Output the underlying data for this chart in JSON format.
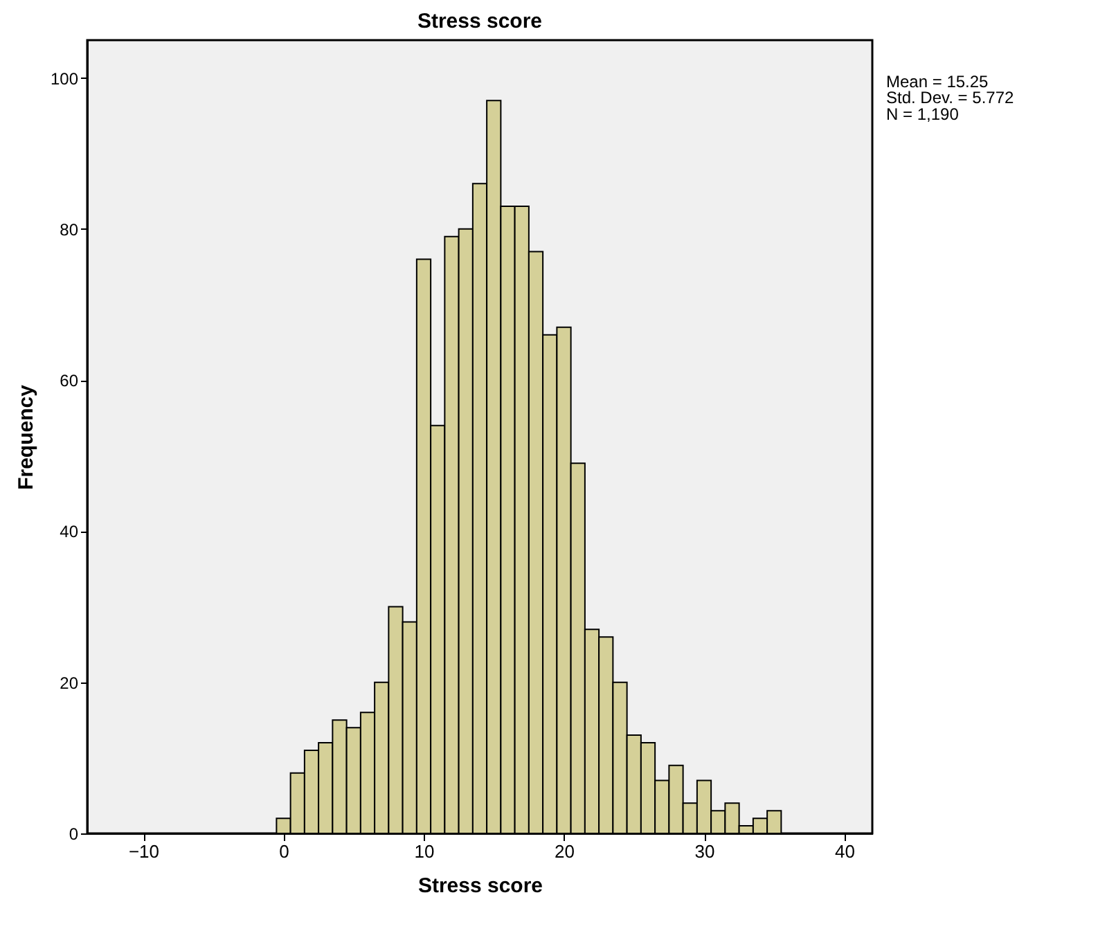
{
  "chart_data": {
    "type": "histogram",
    "title": "Stress score",
    "xlabel": "Stress score",
    "ylabel": "Frequency",
    "bins": [
      -0.5,
      0.5,
      1.5,
      2.5,
      3.5,
      4.5,
      5.5,
      6.5,
      7.5,
      8.5,
      9.5,
      10.5,
      11.5,
      12.5,
      13.5,
      14.5,
      15.5,
      16.5,
      17.5,
      18.5,
      19.5,
      20.5,
      21.5,
      22.5,
      23.5,
      24.5,
      25.5,
      26.5,
      27.5,
      28.5,
      29.5,
      30.5,
      31.5,
      32.5,
      33.5,
      34.5,
      35.5
    ],
    "values": [
      2,
      8,
      11,
      12,
      15,
      14,
      16,
      20,
      30,
      28,
      76,
      54,
      79,
      80,
      86,
      97,
      83,
      83,
      77,
      66,
      67,
      49,
      27,
      26,
      20,
      13,
      12,
      7,
      9,
      4,
      7,
      3,
      4,
      1,
      2,
      3
    ],
    "color": "#d5d098",
    "xlim": [
      -14,
      42
    ],
    "xticks": [
      -10,
      0,
      10,
      20,
      30,
      40
    ],
    "ylim": [
      0,
      105
    ],
    "yticks": [
      0,
      20,
      40,
      60,
      80,
      100
    ],
    "grid": false,
    "annotations": [
      "Mean = 15.25",
      "Std. Dev. = 5.772",
      "N = 1,190"
    ]
  }
}
